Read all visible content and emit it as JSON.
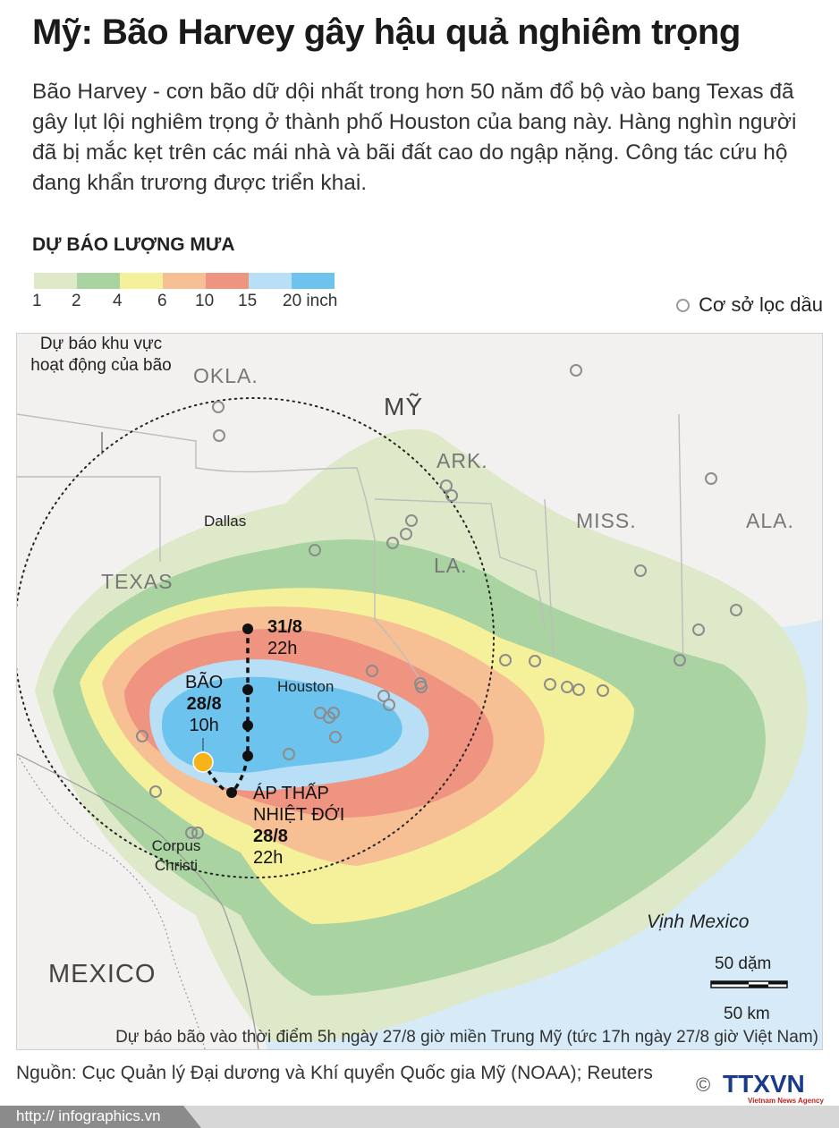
{
  "header": {
    "title": "Mỹ: Bão Harvey gây hậu quả nghiêm trọng",
    "lead": "Bão Harvey - cơn bão dữ dội nhất trong hơn 50 năm đổ bộ vào bang Texas đã gây lụt lội nghiêm trọng ở thành phố Houston của bang này. Hàng nghìn người đã bị mắc kẹt trên các mái nhà và bãi đất cao do ngập nặng. Công tác cứu hộ đang khẩn trương được triển khai."
  },
  "legend": {
    "title": "DỰ BÁO LƯỢNG MƯA",
    "colors": [
      "#dde9c9",
      "#a9d3a1",
      "#f5f19a",
      "#f7bf94",
      "#ef9480",
      "#b8dff5",
      "#6cc3ee"
    ],
    "labels": [
      "1",
      "2",
      "4",
      "6",
      "10",
      "15",
      "20 inch"
    ],
    "refinery_label": "Cơ sở lọc dầu"
  },
  "map": {
    "forecast_area_label": "Dự báo khu vực hoạt động của bão",
    "countries": {
      "usa": "MỸ",
      "mexico": "MEXICO"
    },
    "states": {
      "okla": "OKLA.",
      "ark": "ARK.",
      "miss": "MISS.",
      "ala": "ALA.",
      "la": "LA.",
      "texas": "TEXAS"
    },
    "cities": {
      "dallas": "Dallas",
      "houston": "Houston",
      "corpus_christi": "Corpus Christi"
    },
    "gulf": "Vịnh Mexico",
    "storm": {
      "storm_label": "BÃO",
      "storm_date": "28/8",
      "storm_time": "10h",
      "depression_label": "ÁP THẤP NHIỆT ĐỚI",
      "depression_date": "28/8",
      "depression_time": "22h",
      "end_date": "31/8",
      "end_time": "22h",
      "storm_color": "#f6b31a"
    },
    "scale": {
      "miles": "50 dặm",
      "km": "50 km"
    },
    "note": "Dự báo bão vào thời điểm 5h ngày 27/8 giờ miền Trung Mỹ (tức 17h ngày 27/8 giờ Việt Nam)"
  },
  "footer": {
    "source": "Nguồn: Cục Quản lý Đại dương và Khí quyển Quốc gia Mỹ (NOAA); Reuters",
    "url": "http:// infographics.vn",
    "logo": "TTXVN",
    "logo_sub": "Vietnam News Agency",
    "copyright": "©"
  }
}
